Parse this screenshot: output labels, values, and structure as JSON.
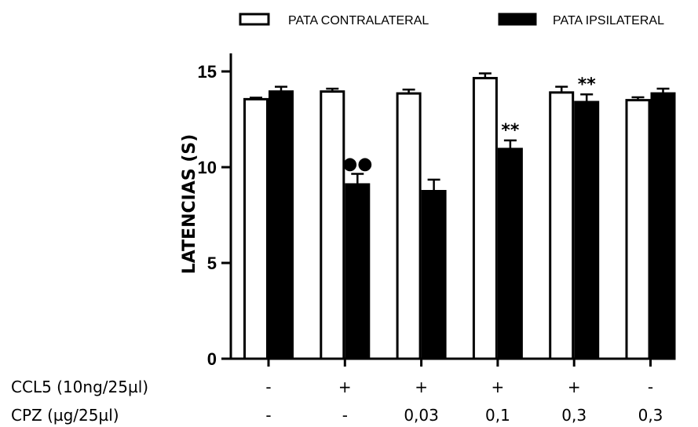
{
  "chart_data": {
    "type": "bar",
    "ylabel": "LATENCIAS (S)",
    "ylim": [
      0,
      15
    ],
    "yticks": [
      "0",
      "5",
      "10",
      "15"
    ],
    "groups": 6,
    "series": [
      {
        "name": "PATA CONTRALATERAL",
        "color": "#ffffff",
        "values": [
          13.55,
          13.95,
          13.85,
          14.65,
          13.9,
          13.5
        ],
        "errors": [
          0.08,
          0.15,
          0.2,
          0.25,
          0.3,
          0.15
        ]
      },
      {
        "name": "PATA IPSILATERAL",
        "color": "#000000",
        "values": [
          13.95,
          9.1,
          8.75,
          10.95,
          13.4,
          13.85
        ],
        "errors": [
          0.25,
          0.55,
          0.6,
          0.45,
          0.4,
          0.25
        ]
      }
    ],
    "annotations": [
      {
        "group": 1,
        "series": 1,
        "text": "●●"
      },
      {
        "group": 3,
        "series": 1,
        "text": "**"
      },
      {
        "group": 4,
        "series": 1,
        "text": "**"
      }
    ],
    "conditions": [
      {
        "label": "CCL5 (10ng/25µl)",
        "values": [
          "-",
          "+",
          "+",
          "+",
          "+",
          "-"
        ]
      },
      {
        "label": "CPZ (µg/25µl)",
        "values": [
          "-",
          "-",
          "0,03",
          "0,1",
          "0,3",
          "0,3"
        ]
      }
    ],
    "legend_position": "top"
  }
}
